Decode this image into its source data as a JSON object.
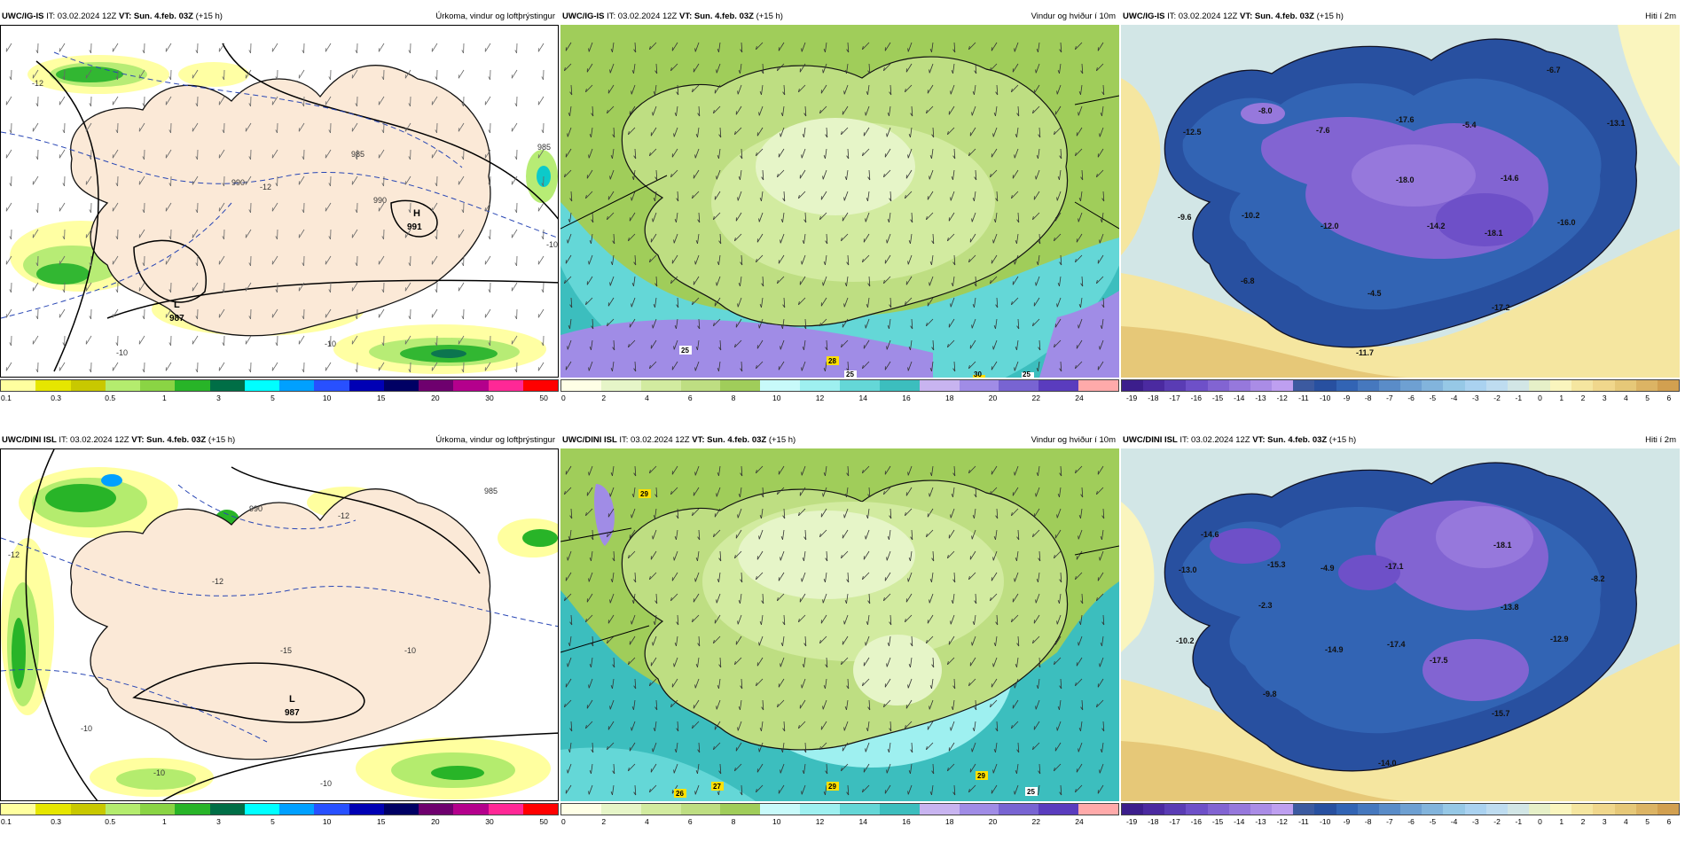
{
  "panels": [
    {
      "model": "UWC/IG-IS",
      "it": "IT: 03.02.2024 12Z",
      "vt_label": "VT:",
      "vt_value": "Sun. 4.feb. 03Z",
      "lead": "(+15 h)",
      "title": "Úrkoma, vindur og loftþrýstingur",
      "type": "precip",
      "scale": [
        "0.1",
        "0.3",
        "0.5",
        "1",
        "3",
        "5",
        "10",
        "15",
        "20",
        "30",
        "50"
      ],
      "colors": [
        "#ffff9f",
        "#e6e600",
        "#c8c800",
        "#b4ec6e",
        "#8ad444",
        "#28b428",
        "#006e46",
        "#00ffff",
        "#00a0ff",
        "#2850ff",
        "#0000b4",
        "#000064",
        "#6e006e",
        "#b4008c",
        "#ff2896",
        "#ff0000"
      ],
      "centers": [
        {
          "kind": "H",
          "value": "991"
        },
        {
          "kind": "L",
          "value": "987"
        }
      ],
      "isobars": [
        "990",
        "990",
        "985",
        "985",
        "-12",
        "-10",
        "-10",
        "-12",
        "-10"
      ]
    },
    {
      "model": "UWC/IG-IS",
      "it": "IT: 03.02.2024 12Z",
      "vt_label": "VT:",
      "vt_value": "Sun. 4.feb. 03Z",
      "lead": "(+15 h)",
      "title": "Vindur og hviður í 10m",
      "type": "wind",
      "scale": [
        "0",
        "2",
        "4",
        "6",
        "8",
        "10",
        "12",
        "14",
        "16",
        "18",
        "20",
        "22",
        "24"
      ],
      "colors": [
        "#ffffe6",
        "#e6f5c8",
        "#d2eba0",
        "#bede82",
        "#a0cd5a",
        "#c8fafa",
        "#9ef0f0",
        "#64d7d7",
        "#3cbebe",
        "#c8b4f0",
        "#a08ce6",
        "#7864d2",
        "#5a3cbe",
        "#ffaaaa"
      ],
      "gusts": [
        "25",
        "28",
        "25",
        "30",
        "25"
      ]
    },
    {
      "model": "UWC/IG-IS",
      "it": "IT: 03.02.2024 12Z",
      "vt_label": "VT:",
      "vt_value": "Sun. 4.feb. 03Z",
      "lead": "(+15 h)",
      "title": "Hiti í 2m",
      "type": "temp",
      "scale": [
        "-19",
        "-18",
        "-17",
        "-16",
        "-15",
        "-14",
        "-13",
        "-12",
        "-11",
        "-10",
        "-9",
        "-8",
        "-7",
        "-6",
        "-5",
        "-4",
        "-3",
        "-2",
        "-1",
        "0",
        "1",
        "2",
        "3",
        "4",
        "5",
        "6"
      ],
      "colors": [
        "#3c1e8c",
        "#4b2aa0",
        "#5a3cb4",
        "#6e50c8",
        "#8264d2",
        "#9678dc",
        "#aa8ce6",
        "#be9ff0",
        "#3c5aa0",
        "#2850a0",
        "#3264b4",
        "#4678be",
        "#5a8cc8",
        "#6ea0d2",
        "#82b4dc",
        "#96c8e6",
        "#aad2f0",
        "#bedcf0",
        "#d2e6e6",
        "#e6f0c8",
        "#faf5be",
        "#f5e6a0",
        "#f0d78c",
        "#e6c878",
        "#dcb464",
        "#d2a050"
      ],
      "values": [
        "-6.7",
        "-12.5",
        "-8.0",
        "-7.6",
        "-17.6",
        "-5.4",
        "-13.1",
        "-18.0",
        "-14.6",
        "-9.6",
        "-10.2",
        "-12.0",
        "-14.2",
        "-18.1",
        "-16.0",
        "-6.8",
        "-4.5",
        "-17.2",
        "-11.7"
      ]
    },
    {
      "model": "UWC/DINI ISL",
      "it": "IT: 03.02.2024 12Z",
      "vt_label": "VT:",
      "vt_value": "Sun. 4.feb. 03Z",
      "lead": "(+15 h)",
      "title": "Úrkoma, vindur og loftþrýstingur",
      "type": "precip",
      "scale": [
        "0.1",
        "0.3",
        "0.5",
        "1",
        "3",
        "5",
        "10",
        "15",
        "20",
        "30",
        "50"
      ],
      "colors": [
        "#ffff9f",
        "#e6e600",
        "#c8c800",
        "#b4ec6e",
        "#8ad444",
        "#28b428",
        "#006e46",
        "#00ffff",
        "#00a0ff",
        "#2850ff",
        "#0000b4",
        "#000064",
        "#6e006e",
        "#b4008c",
        "#ff2896",
        "#ff0000"
      ],
      "centers": [
        {
          "kind": "L",
          "value": "987"
        }
      ],
      "isobars": [
        "-12",
        "-12",
        "-12",
        "-10",
        "-15",
        "-10",
        "-10",
        "-10",
        "990",
        "985"
      ]
    },
    {
      "model": "UWC/DINI ISL",
      "it": "IT: 03.02.2024 12Z",
      "vt_label": "VT:",
      "vt_value": "Sun. 4.feb. 03Z",
      "lead": "(+15 h)",
      "title": "Vindur og hviður í 10m",
      "type": "wind",
      "scale": [
        "0",
        "2",
        "4",
        "6",
        "8",
        "10",
        "12",
        "14",
        "16",
        "18",
        "20",
        "22",
        "24"
      ],
      "colors": [
        "#ffffe6",
        "#e6f5c8",
        "#d2eba0",
        "#bede82",
        "#a0cd5a",
        "#c8fafa",
        "#9ef0f0",
        "#64d7d7",
        "#3cbebe",
        "#c8b4f0",
        "#a08ce6",
        "#7864d2",
        "#5a3cbe",
        "#ffaaaa"
      ],
      "gusts": [
        "29",
        "29",
        "26",
        "27",
        "29",
        "25"
      ]
    },
    {
      "model": "UWC/DINI ISL",
      "it": "IT: 03.02.2024 12Z",
      "vt_label": "VT:",
      "vt_value": "Sun. 4.feb. 03Z",
      "lead": "(+15 h)",
      "title": "Hiti í 2m",
      "type": "temp",
      "scale": [
        "-19",
        "-18",
        "-17",
        "-16",
        "-15",
        "-14",
        "-13",
        "-12",
        "-11",
        "-10",
        "-9",
        "-8",
        "-7",
        "-6",
        "-5",
        "-4",
        "-3",
        "-2",
        "-1",
        "0",
        "1",
        "2",
        "3",
        "4",
        "5",
        "6"
      ],
      "colors": [
        "#3c1e8c",
        "#4b2aa0",
        "#5a3cb4",
        "#6e50c8",
        "#8264d2",
        "#9678dc",
        "#aa8ce6",
        "#be9ff0",
        "#3c5aa0",
        "#2850a0",
        "#3264b4",
        "#4678be",
        "#5a8cc8",
        "#6ea0d2",
        "#82b4dc",
        "#96c8e6",
        "#aad2f0",
        "#bedcf0",
        "#d2e6e6",
        "#e6f0c8",
        "#faf5be",
        "#f5e6a0",
        "#f0d78c",
        "#e6c878",
        "#dcb464",
        "#d2a050"
      ],
      "values": [
        "-14.6",
        "-13.0",
        "-15.3",
        "-4.9",
        "-17.1",
        "-18.1",
        "-8.2",
        "-2.3",
        "-10.2",
        "-14.9",
        "-17.4",
        "-13.8",
        "-12.9",
        "-17.5",
        "-9.8",
        "-15.7",
        "-14.0"
      ]
    }
  ]
}
